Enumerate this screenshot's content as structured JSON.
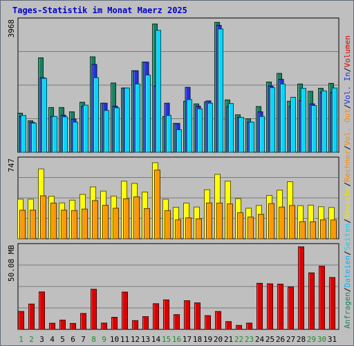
{
  "title": "Tages-Statistik im Monat Maerz 2025",
  "colors": {
    "anfragen": "#1a8060",
    "dateien": "#00b4ff",
    "seiten": "#00d8ff",
    "besuche": "#ffff00",
    "rechner": "#ff9900",
    "vol_in": "#2233dd",
    "vol_out": "#ff8800",
    "volumen": "#dd0000",
    "panel_bg": "#bfbfbf",
    "grid": "#7a7a7a",
    "title": "#0000cc"
  },
  "chart_data": [
    {
      "type": "bar",
      "panel": "hits",
      "ytick_label": "3968",
      "ylim": [
        0,
        3968
      ],
      "categories": [
        "1",
        "2",
        "3",
        "4",
        "5",
        "6",
        "7",
        "8",
        "9",
        "10",
        "11",
        "12",
        "13",
        "14",
        "15",
        "16",
        "17",
        "18",
        "19",
        "20",
        "21",
        "22",
        "23",
        "24",
        "25",
        "26",
        "27",
        "28",
        "29",
        "30",
        "31"
      ],
      "weekend_days": [
        "1",
        "2",
        "8",
        "9",
        "15",
        "16",
        "22",
        "23",
        "29",
        "30"
      ],
      "legend": [
        "Anfragen",
        "Dateien",
        "Seiten"
      ],
      "series": [
        {
          "name": "Anfragen",
          "color": "#1a8060",
          "values": [
            1180,
            950,
            2850,
            1350,
            1350,
            1220,
            1510,
            2880,
            1480,
            2090,
            1940,
            2460,
            2720,
            3870,
            1080,
            870,
            1540,
            1460,
            1520,
            3920,
            1580,
            1130,
            1010,
            1380,
            2120,
            2380,
            1540,
            2060,
            1840,
            1930,
            2080
          ]
        },
        {
          "name": "Dateien",
          "color": "#2233dd",
          "values": [
            1080,
            900,
            2250,
            1080,
            1120,
            1000,
            1380,
            2650,
            1480,
            1390,
            1940,
            2460,
            2720,
            2000,
            1480,
            870,
            1960,
            1390,
            1550,
            3830,
            1380,
            1050,
            910,
            1220,
            2000,
            2200,
            1380,
            1560,
            1460,
            1800,
            1800
          ]
        },
        {
          "name": "Seiten",
          "color": "#00d8ff",
          "values": [
            1110,
            880,
            2230,
            1080,
            1070,
            910,
            1420,
            2250,
            1260,
            1340,
            1940,
            2060,
            2330,
            3680,
            1110,
            680,
            1590,
            1310,
            1480,
            3720,
            1470,
            1050,
            910,
            1080,
            1950,
            2060,
            1660,
            1930,
            1410,
            1850,
            1940
          ]
        }
      ]
    },
    {
      "type": "bar",
      "panel": "visits",
      "ytick_label": "747",
      "ylim": [
        0,
        747
      ],
      "legend": [
        "Besuche",
        "Rechner"
      ],
      "series": [
        {
          "name": "Besuche",
          "color": "#ffff00",
          "values": [
            375,
            375,
            661,
            402,
            339,
            365,
            420,
            491,
            451,
            404,
            545,
            524,
            442,
            720,
            374,
            298,
            338,
            300,
            464,
            610,
            545,
            380,
            289,
            315,
            410,
            460,
            540,
            313,
            318,
            303,
            296
          ]
        },
        {
          "name": "Rechner",
          "color": "#ff9900",
          "values": [
            270,
            271,
            407,
            338,
            271,
            267,
            281,
            361,
            317,
            289,
            379,
            397,
            285,
            650,
            267,
            179,
            198,
            189,
            339,
            338,
            330,
            247,
            205,
            231,
            333,
            300,
            315,
            161,
            160,
            179,
            178
          ]
        }
      ]
    },
    {
      "type": "bar",
      "panel": "volume",
      "ytick_label": "50.08 MB",
      "ylim": [
        0,
        50.08
      ],
      "legend": [
        "Volumen",
        "Vol. In",
        "Vol. Out"
      ],
      "series": [
        {
          "name": "Volumen",
          "color": "#dd0000",
          "values": [
            10.8,
            15.3,
            22.6,
            3.7,
            5.6,
            3.6,
            9.6,
            24.2,
            3.8,
            7.3,
            22.5,
            5.3,
            7.7,
            15.5,
            17.8,
            8.9,
            17.3,
            16.0,
            8.3,
            10.8,
            4.7,
            2.4,
            3.8,
            27.8,
            27.5,
            27.3,
            25.6,
            49.8,
            34.1,
            38.1,
            31.3
          ]
        }
      ]
    }
  ],
  "side_legend": [
    {
      "text": "Anfragen",
      "color": "#1a8060"
    },
    {
      "text": "/",
      "color": "#000000"
    },
    {
      "text": "Dateien",
      "color": "#00b4ff"
    },
    {
      "text": "/",
      "color": "#000000"
    },
    {
      "text": "Seiten",
      "color": "#00d8ff"
    },
    {
      "text": "/",
      "color": "#000000"
    },
    {
      "text": "Besuche",
      "color": "#e8e800"
    },
    {
      "text": "/",
      "color": "#000000"
    },
    {
      "text": "Rechner",
      "color": "#ff8800"
    },
    {
      "text": "/",
      "color": "#000000"
    },
    {
      "text": "Vol. Out",
      "color": "#ff8800"
    },
    {
      "text": "/",
      "color": "#000000"
    },
    {
      "text": "Vol. In",
      "color": "#2233dd"
    },
    {
      "text": "/",
      "color": "#000000"
    },
    {
      "text": "Volumen",
      "color": "#dd0000"
    }
  ]
}
